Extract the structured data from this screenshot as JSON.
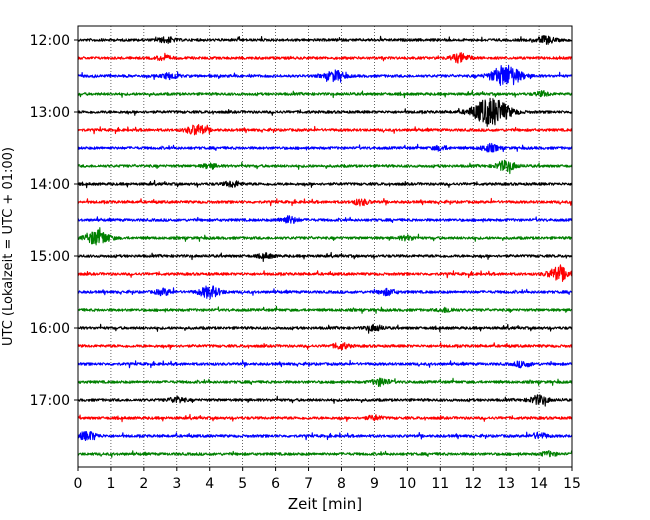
{
  "chart_data": {
    "type": "line",
    "title": "",
    "xlabel": "Zeit  [min]",
    "ylabel": "UTC (Lokalzeit = UTC + 01:00)",
    "xlim": [
      0,
      15
    ],
    "x_ticks": [
      "0",
      "1",
      "2",
      "3",
      "4",
      "5",
      "6",
      "7",
      "8",
      "9",
      "10",
      "11",
      "12",
      "13",
      "14",
      "15"
    ],
    "y_ticks": [
      "12:00",
      "13:00",
      "14:00",
      "15:00",
      "16:00",
      "17:00"
    ],
    "grid": "vertical dotted lines at each minute",
    "trace_colors": [
      "#000000",
      "#ff0000",
      "#0000ff",
      "#008000"
    ],
    "trace_start_utc": [
      "12:00",
      "12:15",
      "12:30",
      "12:45",
      "13:00",
      "13:15",
      "13:30",
      "13:45",
      "14:00",
      "14:15",
      "14:30",
      "14:45",
      "15:00",
      "15:15",
      "15:30",
      "15:45",
      "16:00",
      "16:15",
      "16:30",
      "16:45",
      "17:00",
      "17:15",
      "17:30",
      "17:45"
    ],
    "events": [
      {
        "trace": 0,
        "minute": 14.2,
        "amp": 0.25
      },
      {
        "trace": 0,
        "minute": 2.7,
        "amp": 0.18
      },
      {
        "trace": 1,
        "minute": 11.6,
        "amp": 0.3
      },
      {
        "trace": 1,
        "minute": 2.6,
        "amp": 0.15
      },
      {
        "trace": 2,
        "minute": 13.0,
        "amp": 0.75
      },
      {
        "trace": 2,
        "minute": 7.8,
        "amp": 0.35
      },
      {
        "trace": 2,
        "minute": 2.8,
        "amp": 0.2
      },
      {
        "trace": 3,
        "minute": 14.1,
        "amp": 0.15
      },
      {
        "trace": 4,
        "minute": 12.55,
        "amp": 1.0
      },
      {
        "trace": 5,
        "minute": 3.6,
        "amp": 0.35
      },
      {
        "trace": 6,
        "minute": 12.5,
        "amp": 0.25
      },
      {
        "trace": 6,
        "minute": 11.0,
        "amp": 0.15
      },
      {
        "trace": 7,
        "minute": 13.0,
        "amp": 0.35
      },
      {
        "trace": 7,
        "minute": 4.0,
        "amp": 0.15
      },
      {
        "trace": 8,
        "minute": 4.7,
        "amp": 0.2
      },
      {
        "trace": 9,
        "minute": 8.6,
        "amp": 0.2
      },
      {
        "trace": 10,
        "minute": 6.4,
        "amp": 0.25
      },
      {
        "trace": 11,
        "minute": 0.6,
        "amp": 0.5
      },
      {
        "trace": 11,
        "minute": 10.0,
        "amp": 0.15
      },
      {
        "trace": 12,
        "minute": 5.7,
        "amp": 0.15
      },
      {
        "trace": 13,
        "minute": 14.6,
        "amp": 0.45
      },
      {
        "trace": 14,
        "minute": 4.0,
        "amp": 0.4
      },
      {
        "trace": 14,
        "minute": 2.6,
        "amp": 0.2
      },
      {
        "trace": 14,
        "minute": 9.4,
        "amp": 0.2
      },
      {
        "trace": 15,
        "minute": 11.2,
        "amp": 0.15
      },
      {
        "trace": 16,
        "minute": 9.0,
        "amp": 0.2
      },
      {
        "trace": 17,
        "minute": 8.0,
        "amp": 0.2
      },
      {
        "trace": 18,
        "minute": 13.5,
        "amp": 0.2
      },
      {
        "trace": 19,
        "minute": 9.2,
        "amp": 0.25
      },
      {
        "trace": 20,
        "minute": 14.0,
        "amp": 0.3
      },
      {
        "trace": 20,
        "minute": 3.0,
        "amp": 0.2
      },
      {
        "trace": 21,
        "minute": 9.0,
        "amp": 0.15
      },
      {
        "trace": 22,
        "minute": 0.3,
        "amp": 0.3
      },
      {
        "trace": 22,
        "minute": 14.0,
        "amp": 0.2
      },
      {
        "trace": 23,
        "minute": 14.3,
        "amp": 0.15
      }
    ]
  }
}
